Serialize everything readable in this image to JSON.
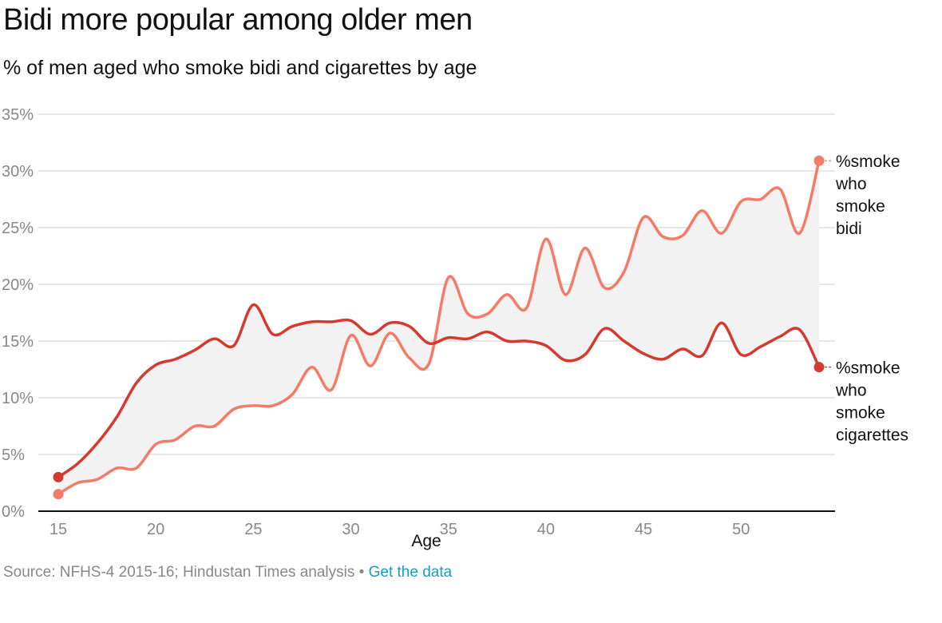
{
  "title": "Bidi more popular among older men",
  "subtitle": "% of men aged who smoke bidi and cigarettes by age",
  "footer": {
    "source": "Source: NFHS-4 2015-16; Hindustan Times analysis",
    "separator": " • ",
    "link": "Get the data"
  },
  "colors": {
    "bidi": "#f47b66",
    "cigarettes": "#d43a2f",
    "band": "#f2f2f2",
    "grid": "#dddddd",
    "baseline": "#111111",
    "link": "#1a9bc0"
  },
  "chart_data": {
    "type": "line",
    "xlabel": "Age",
    "ylabel": "",
    "xlim": [
      15,
      54
    ],
    "ylim": [
      0,
      35
    ],
    "x_ticks": [
      15,
      20,
      25,
      30,
      35,
      40,
      45,
      50
    ],
    "y_ticks": [
      0,
      5,
      10,
      15,
      20,
      25,
      30,
      35
    ],
    "y_tick_labels": [
      "0%",
      "5%",
      "10%",
      "15%",
      "20%",
      "25%",
      "30%",
      "35%"
    ],
    "grid": true,
    "legend": "end-of-line labels",
    "shaded_band_between_series": true,
    "x": [
      15,
      16,
      17,
      18,
      19,
      20,
      21,
      22,
      23,
      24,
      25,
      26,
      27,
      28,
      29,
      30,
      31,
      32,
      33,
      34,
      35,
      36,
      37,
      38,
      39,
      40,
      41,
      42,
      43,
      44,
      45,
      46,
      47,
      48,
      49,
      50,
      51,
      52,
      53,
      54
    ],
    "series": [
      {
        "name": "%smoke who smoke bidi",
        "label_lines": [
          "%smoke",
          "who",
          "smoke",
          "bidi"
        ],
        "values": [
          1.5,
          2.5,
          2.8,
          3.8,
          3.8,
          5.9,
          6.3,
          7.5,
          7.5,
          9.0,
          9.3,
          9.3,
          10.3,
          12.7,
          10.7,
          15.5,
          12.8,
          15.7,
          13.5,
          13.0,
          20.6,
          17.4,
          17.4,
          19.1,
          17.9,
          24.0,
          19.1,
          23.2,
          19.7,
          21.1,
          25.9,
          24.2,
          24.3,
          26.5,
          24.5,
          27.3,
          27.5,
          28.4,
          24.5,
          30.9
        ]
      },
      {
        "name": "%smoke who smoke cigarettes",
        "label_lines": [
          "%smoke",
          "who",
          "smoke",
          "cigarettes"
        ],
        "values": [
          3.0,
          4.2,
          6.0,
          8.3,
          11.3,
          12.9,
          13.4,
          14.2,
          15.2,
          14.6,
          18.2,
          15.6,
          16.3,
          16.7,
          16.7,
          16.8,
          15.6,
          16.6,
          16.3,
          14.8,
          15.3,
          15.2,
          15.8,
          15.0,
          15.0,
          14.6,
          13.3,
          13.8,
          16.1,
          15.0,
          13.9,
          13.4,
          14.3,
          13.7,
          16.6,
          13.8,
          14.5,
          15.4,
          16.0,
          12.7
        ]
      }
    ]
  }
}
